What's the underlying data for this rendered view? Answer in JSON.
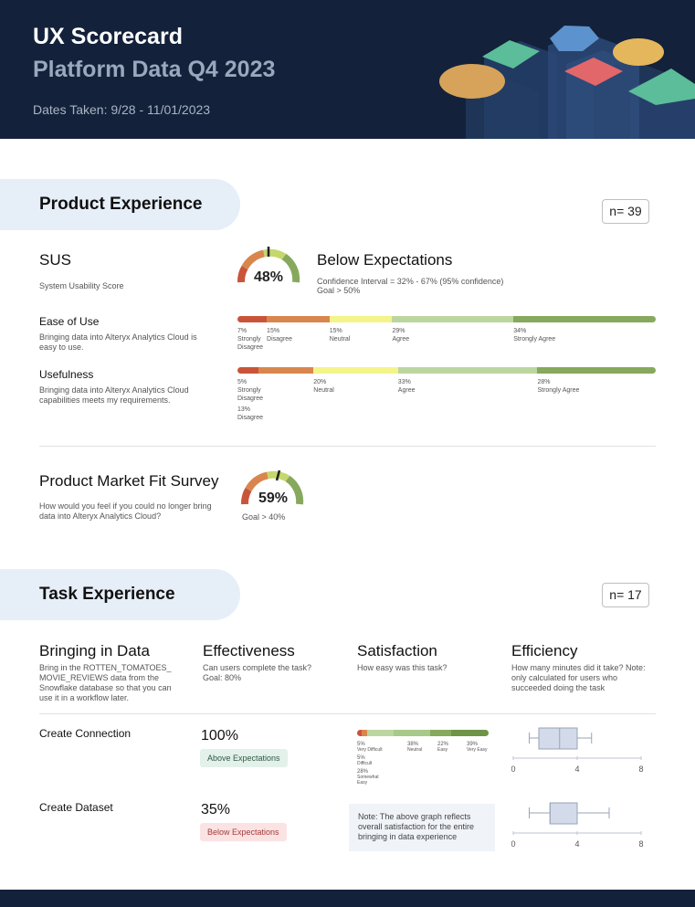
{
  "header": {
    "title": "UX Scorecard",
    "subtitle": "Platform Data Q4 2023",
    "dates": "Dates Taken: 9/28 - 11/01/2023"
  },
  "product": {
    "heading": "Product Experience",
    "n": "n= 39",
    "sus": {
      "title": "SUS",
      "desc": "System Usability Score",
      "score": "48%",
      "score_value": 48,
      "status": "Below Expectations",
      "ci": "Confidence Interval = 32% - 67% (95% confidence)",
      "goal": "Goal > 50%"
    },
    "ease": {
      "title": "Ease of Use",
      "desc": "Bringing data into Alteryx Analytics Cloud is easy to use.",
      "segments": [
        {
          "pct": "7%",
          "label": "Strongly Disagree",
          "value": 7
        },
        {
          "pct": "15%",
          "label": "Disagree",
          "value": 15
        },
        {
          "pct": "15%",
          "label": "Neutral",
          "value": 15
        },
        {
          "pct": "29%",
          "label": "Agree",
          "value": 29
        },
        {
          "pct": "34%",
          "label": "Strongly Agree",
          "value": 34
        }
      ]
    },
    "usefulness": {
      "title": "Usefulness",
      "desc": "Bringing data into Alteryx Analytics Cloud capabilities meets my requirements.",
      "segments": [
        {
          "pct": "5%",
          "label": "Strongly Disagree",
          "value": 5
        },
        {
          "pct": "13%",
          "label": "Disagree",
          "value": 13
        },
        {
          "pct": "20%",
          "label": "Neutral",
          "value": 20
        },
        {
          "pct": "33%",
          "label": "Agree",
          "value": 33
        },
        {
          "pct": "28%",
          "label": "Strongly Agree",
          "value": 28
        }
      ]
    },
    "pmf": {
      "title": "Product Market Fit Survey",
      "desc": "How would you feel if you could no longer bring data into Alteryx Analytics Cloud?",
      "score": "59%",
      "score_value": 59,
      "goal": "Goal > 40%"
    }
  },
  "task": {
    "heading": "Task Experience",
    "n": "n= 17",
    "col1": {
      "title": "Bringing in Data",
      "desc": "Bring in the ROTTEN_TOMATOES_ MOVIE_REVIEWS data from the Snowflake database so that you can use it in a workflow later."
    },
    "col2": {
      "title": "Effectiveness",
      "desc": "Can users complete the task? Goal: 80%"
    },
    "col3": {
      "title": "Satisfaction",
      "desc": "How easy was this task?"
    },
    "col4": {
      "title": "Efficiency",
      "desc": "How many minutes did it take? Note: only calculated for users who succeeded doing the task"
    },
    "rows": [
      {
        "name": "Create Connection",
        "pct": "100%",
        "badge": "Above Expectations"
      },
      {
        "name": "Create Dataset",
        "pct": "35%",
        "badge": "Below Expectations"
      }
    ],
    "satisfaction": [
      {
        "pct": "5%",
        "label": "Very Difficult",
        "value": 5
      },
      {
        "pct": "5%",
        "label": "Difficult",
        "value": 5
      },
      {
        "pct": "28%",
        "label": "Somewhat Easy",
        "value": 28
      },
      {
        "pct": "38%",
        "label": "Neutral",
        "value": 38
      },
      {
        "pct": "22%",
        "label": "Easy",
        "value": 22
      },
      {
        "pct": "39%",
        "label": "Very Easy",
        "value": 39
      }
    ],
    "note": "Note: The above graph reflects overall satisfaction for the entire bringing in data experience",
    "axis_ticks": [
      "0",
      "4",
      "8"
    ],
    "boxplots": [
      {
        "min": 1.0,
        "q1": 1.6,
        "median": 2.9,
        "q3": 4.0,
        "max": 4.9
      },
      {
        "min": 1.0,
        "q1": 2.3,
        "median": 2.3,
        "q3": 4.0,
        "max": 6.0
      }
    ]
  },
  "colors": {
    "navy": "#13213a",
    "c1": "#c9543a",
    "c2": "#d9864e",
    "c3": "#f4f48a",
    "c4": "#bcd6a0",
    "c5": "#86a95d"
  }
}
